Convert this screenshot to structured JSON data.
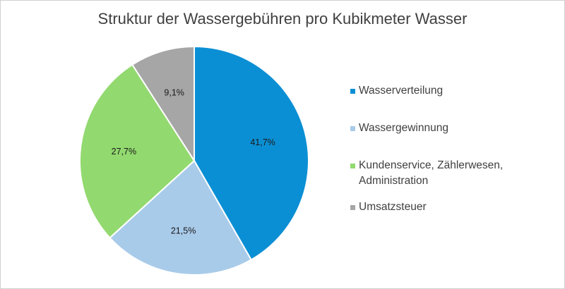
{
  "chart_data": {
    "type": "pie",
    "title": "Struktur der Wassergebühren pro Kubikmeter Wasser",
    "legend_position": "right",
    "slices": [
      {
        "label": "Wasserverteilung",
        "value": 41.7,
        "value_label": "41,7%",
        "color": "#0b8fd4"
      },
      {
        "label": "Wassergewinnung",
        "value": 21.5,
        "value_label": "21,5%",
        "color": "#a9cbea"
      },
      {
        "label": "Kundenservice, Zählerwesen, Administration",
        "value": 27.7,
        "value_label": "27,7%",
        "color": "#92d96f"
      },
      {
        "label": "Umsatzsteuer",
        "value": 9.1,
        "value_label": "9,1%",
        "color": "#a6a6a6"
      }
    ]
  }
}
